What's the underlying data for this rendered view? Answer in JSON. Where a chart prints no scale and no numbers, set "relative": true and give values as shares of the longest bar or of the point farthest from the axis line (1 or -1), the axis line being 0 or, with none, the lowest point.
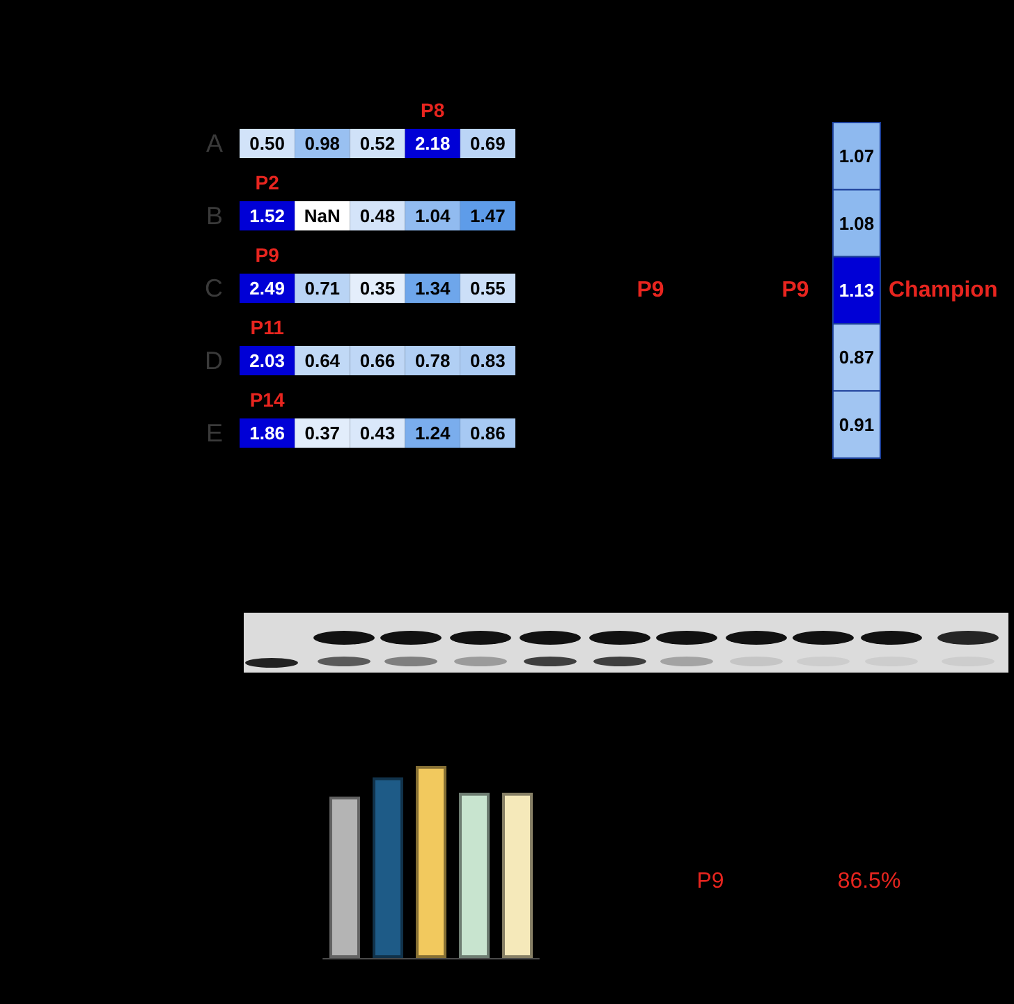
{
  "chart_data": [
    {
      "type": "heatmap",
      "categories": [
        null,
        null,
        null,
        null,
        null
      ],
      "y_categories": [
        "A",
        "B",
        "C",
        "D",
        "E"
      ],
      "cells": [
        [
          0.5,
          0.98,
          0.52,
          2.18,
          0.69
        ],
        [
          1.52,
          null,
          0.48,
          1.04,
          1.47
        ],
        [
          2.49,
          0.71,
          0.35,
          1.34,
          0.55
        ],
        [
          2.03,
          0.64,
          0.66,
          0.78,
          0.83
        ],
        [
          1.86,
          0.37,
          0.43,
          1.24,
          0.86
        ]
      ],
      "cell_labels": [
        [
          "0.50",
          "0.98",
          "0.52",
          "2.18",
          "0.69"
        ],
        [
          "1.52",
          "NaN",
          "0.48",
          "1.04",
          "1.47"
        ],
        [
          "2.49",
          "0.71",
          "0.35",
          "1.34",
          "0.55"
        ],
        [
          "2.03",
          "0.64",
          "0.66",
          "0.78",
          "0.83"
        ],
        [
          "1.86",
          "0.37",
          "0.43",
          "1.24",
          "0.86"
        ]
      ],
      "annotations": [
        "P8",
        "P2",
        "P9",
        "P11",
        "P14"
      ]
    },
    {
      "type": "heatmap",
      "categories": [
        null
      ],
      "y_categories": [
        null,
        null,
        null,
        null,
        null
      ],
      "cells": [
        [
          1.07
        ],
        [
          1.08
        ],
        [
          1.13
        ],
        [
          0.87
        ],
        [
          0.91
        ]
      ],
      "cell_labels": [
        [
          "1.07"
        ],
        [
          "1.08"
        ],
        [
          "1.13"
        ],
        [
          "0.87"
        ],
        [
          "0.91"
        ]
      ],
      "annotations": [
        "P9",
        "P9",
        "Champion"
      ]
    },
    {
      "type": "bar",
      "relative": true,
      "categories": [
        null,
        null,
        null,
        null,
        null
      ],
      "values": [
        0.84,
        0.94,
        1,
        0.86,
        0.86
      ],
      "colors": [
        "#b4b4b4",
        "#1e5b87",
        "#f2c95e",
        "#c8e4cf",
        "#f5e9ba"
      ]
    },
    {
      "type": "other",
      "annotations": [
        "P9",
        "86.5%"
      ]
    }
  ]
}
